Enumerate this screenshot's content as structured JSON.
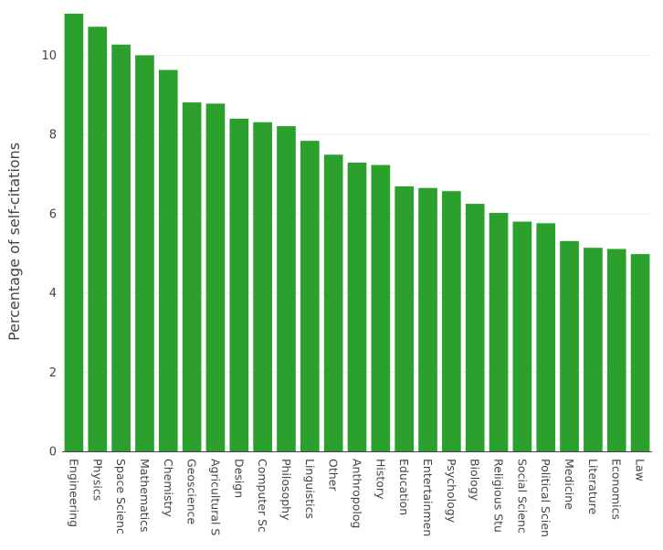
{
  "chart_data": {
    "type": "bar",
    "title": "",
    "xlabel": "",
    "ylabel": "Percentage of self-citations",
    "bar_color": "#2ca02c",
    "categories": [
      "Engineering",
      "Physics",
      "Space Science",
      "Mathematics",
      "Chemistry",
      "Geoscience",
      "Agricultural Science",
      "Design",
      "Computer Science",
      "Philosophy",
      "Linguistics",
      "Other",
      "Anthropology",
      "History",
      "Education",
      "Entertainment",
      "Psychology",
      "Biology",
      "Religious Studies",
      "Social Science",
      "Political Science",
      "Medicine",
      "Literature",
      "Economics",
      "Law"
    ],
    "tick_labels": [
      "Engineering",
      "Physics",
      "Space Scienc",
      "Mathematics",
      "Chemistry",
      "Geoscience",
      "Agricultural S",
      "Design",
      "Computer Sc",
      "Philosophy",
      "Linguistics",
      "Other",
      "Anthropolog",
      "History",
      "Education",
      "Entertainmen",
      "Psychology",
      "Biology",
      "Religious Stu",
      "Social Scienc",
      "Political Scien",
      "Medicine",
      "Literature",
      "Economics",
      "Law"
    ],
    "values": [
      11.05,
      10.72,
      10.27,
      10.0,
      9.63,
      8.81,
      8.78,
      8.4,
      8.31,
      8.21,
      7.84,
      7.49,
      7.29,
      7.23,
      6.69,
      6.65,
      6.57,
      6.25,
      6.02,
      5.8,
      5.76,
      5.31,
      5.14,
      5.11,
      4.98
    ],
    "yticks": [
      0,
      2,
      4,
      6,
      8,
      10
    ],
    "ylim": [
      0,
      11.05
    ],
    "grid": true
  }
}
